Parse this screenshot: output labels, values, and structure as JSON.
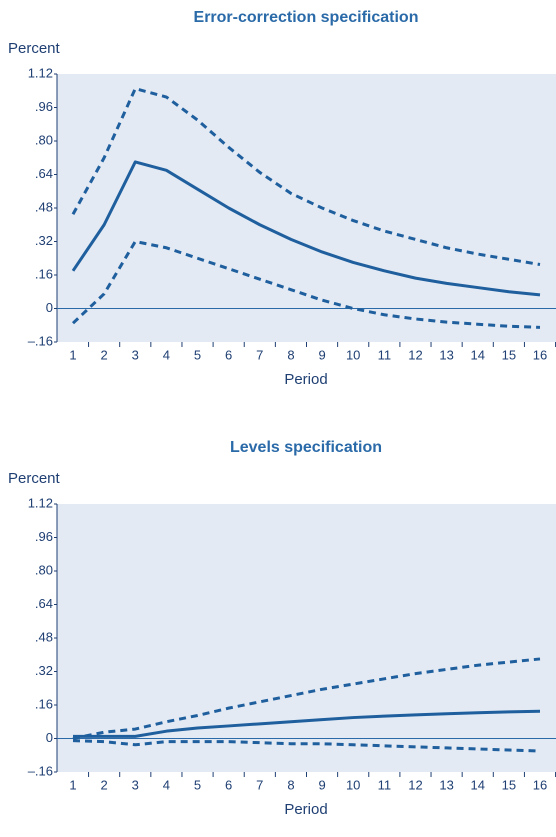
{
  "chart_data": [
    {
      "type": "line",
      "title": "Error-correction specification",
      "ylabel": "Percent",
      "xlabel": "Period",
      "categories": [
        "1",
        "2",
        "3",
        "4",
        "5",
        "6",
        "7",
        "8",
        "9",
        "10",
        "11",
        "12",
        "13",
        "14",
        "15",
        "16"
      ],
      "ylim": [
        -0.16,
        1.12
      ],
      "yticks": [
        {
          "value": -0.16,
          "label": "–.16"
        },
        0,
        {
          "value": 0.16,
          "label": ".16"
        },
        {
          "value": 0.32,
          "label": ".32"
        },
        {
          "value": 0.48,
          "label": ".48"
        },
        {
          "value": 0.64,
          "label": ".64"
        },
        {
          "value": 0.8,
          "label": ".80"
        },
        {
          "value": 0.96,
          "label": ".96"
        },
        1.12
      ],
      "series": [
        {
          "color": "#1f5f9e",
          "dashed": false,
          "values": [
            0.18,
            0.4,
            0.7,
            0.66,
            0.57,
            0.48,
            0.4,
            0.33,
            0.27,
            0.22,
            0.18,
            0.145,
            0.12,
            0.1,
            0.08,
            0.065
          ]
        },
        {
          "color": "#1f5f9e",
          "dashed": true,
          "values": [
            0.45,
            0.72,
            1.05,
            1.01,
            0.9,
            0.77,
            0.65,
            0.55,
            0.48,
            0.42,
            0.37,
            0.33,
            0.29,
            0.26,
            0.235,
            0.21
          ]
        },
        {
          "color": "#1f5f9e",
          "dashed": true,
          "values": [
            -0.07,
            0.07,
            0.32,
            0.29,
            0.24,
            0.19,
            0.14,
            0.09,
            0.04,
            0.0,
            -0.03,
            -0.05,
            -0.065,
            -0.075,
            -0.085,
            -0.09
          ]
        }
      ]
    },
    {
      "type": "line",
      "title": "Levels specification",
      "ylabel": "Percent",
      "xlabel": "Period",
      "categories": [
        "1",
        "2",
        "3",
        "4",
        "5",
        "6",
        "7",
        "8",
        "9",
        "10",
        "11",
        "12",
        "13",
        "14",
        "15",
        "16"
      ],
      "ylim": [
        -0.16,
        1.12
      ],
      "yticks": [
        {
          "value": -0.16,
          "label": "–.16"
        },
        0,
        {
          "value": 0.16,
          "label": ".16"
        },
        {
          "value": 0.32,
          "label": ".32"
        },
        {
          "value": 0.48,
          "label": ".48"
        },
        {
          "value": 0.64,
          "label": ".64"
        },
        {
          "value": 0.8,
          "label": ".80"
        },
        {
          "value": 0.96,
          "label": ".96"
        },
        1.12
      ],
      "series": [
        {
          "color": "#1f5f9e",
          "dashed": false,
          "values": [
            0.01,
            0.01,
            0.01,
            0.035,
            0.05,
            0.06,
            0.07,
            0.08,
            0.09,
            0.1,
            0.107,
            0.113,
            0.118,
            0.123,
            0.127,
            0.13
          ]
        },
        {
          "color": "#1f5f9e",
          "dashed": true,
          "values": [
            0.0,
            0.03,
            0.045,
            0.08,
            0.11,
            0.145,
            0.175,
            0.205,
            0.235,
            0.26,
            0.285,
            0.31,
            0.33,
            0.35,
            0.365,
            0.38
          ]
        },
        {
          "color": "#1f5f9e",
          "dashed": true,
          "values": [
            -0.01,
            -0.015,
            -0.03,
            -0.015,
            -0.015,
            -0.015,
            -0.02,
            -0.025,
            -0.025,
            -0.03,
            -0.035,
            -0.04,
            -0.045,
            -0.05,
            -0.055,
            -0.06
          ]
        }
      ]
    }
  ]
}
